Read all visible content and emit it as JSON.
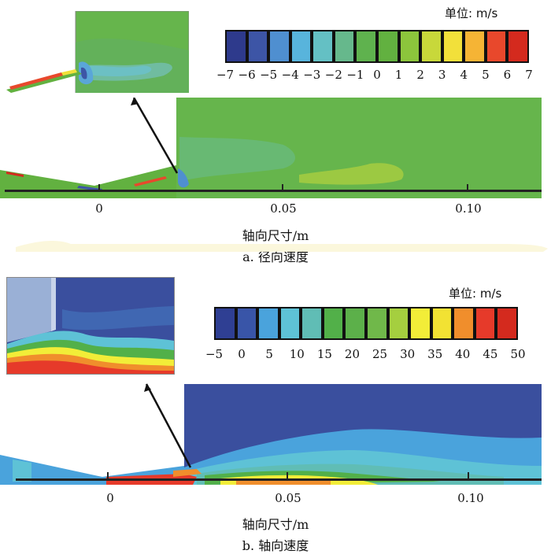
{
  "panel_a": {
    "unit_label": "单位: m/s",
    "colorbar": {
      "colors": [
        "#2e3a8c",
        "#3d55a6",
        "#4f8fd0",
        "#58b4dc",
        "#64c0c4",
        "#66b88c",
        "#5fb24e",
        "#62b140",
        "#8cc53c",
        "#c8d83a",
        "#f2e03a",
        "#f5b435",
        "#e8482c",
        "#d42a1e"
      ],
      "tick_labels": [
        "−7",
        "−6",
        "−5",
        "−4",
        "−3",
        "−2",
        "−1",
        "0",
        "1",
        "2",
        "3",
        "4",
        "5",
        "6",
        "7"
      ]
    },
    "x_ticks": [
      "0",
      "0.05",
      "0.10"
    ],
    "x_label": "轴向尺寸/m",
    "caption": "a. 径向速度"
  },
  "panel_b": {
    "unit_label": "单位: m/s",
    "colorbar": {
      "colors": [
        "#2f3f93",
        "#3955a8",
        "#4aa3dc",
        "#5ec2d6",
        "#60bdb5",
        "#52b049",
        "#5cb04a",
        "#70b84a",
        "#a5cf3f",
        "#f2ed38",
        "#f2e233",
        "#f08e2c",
        "#e63a2a",
        "#d42a1e"
      ],
      "tick_labels": [
        "−5",
        "0",
        "5",
        "10",
        "15",
        "20",
        "25",
        "30",
        "35",
        "40",
        "45",
        "50"
      ]
    },
    "x_ticks": [
      "0",
      "0.05",
      "0.10"
    ],
    "x_label": "轴向尺寸/m",
    "caption": "b. 轴向速度"
  }
}
